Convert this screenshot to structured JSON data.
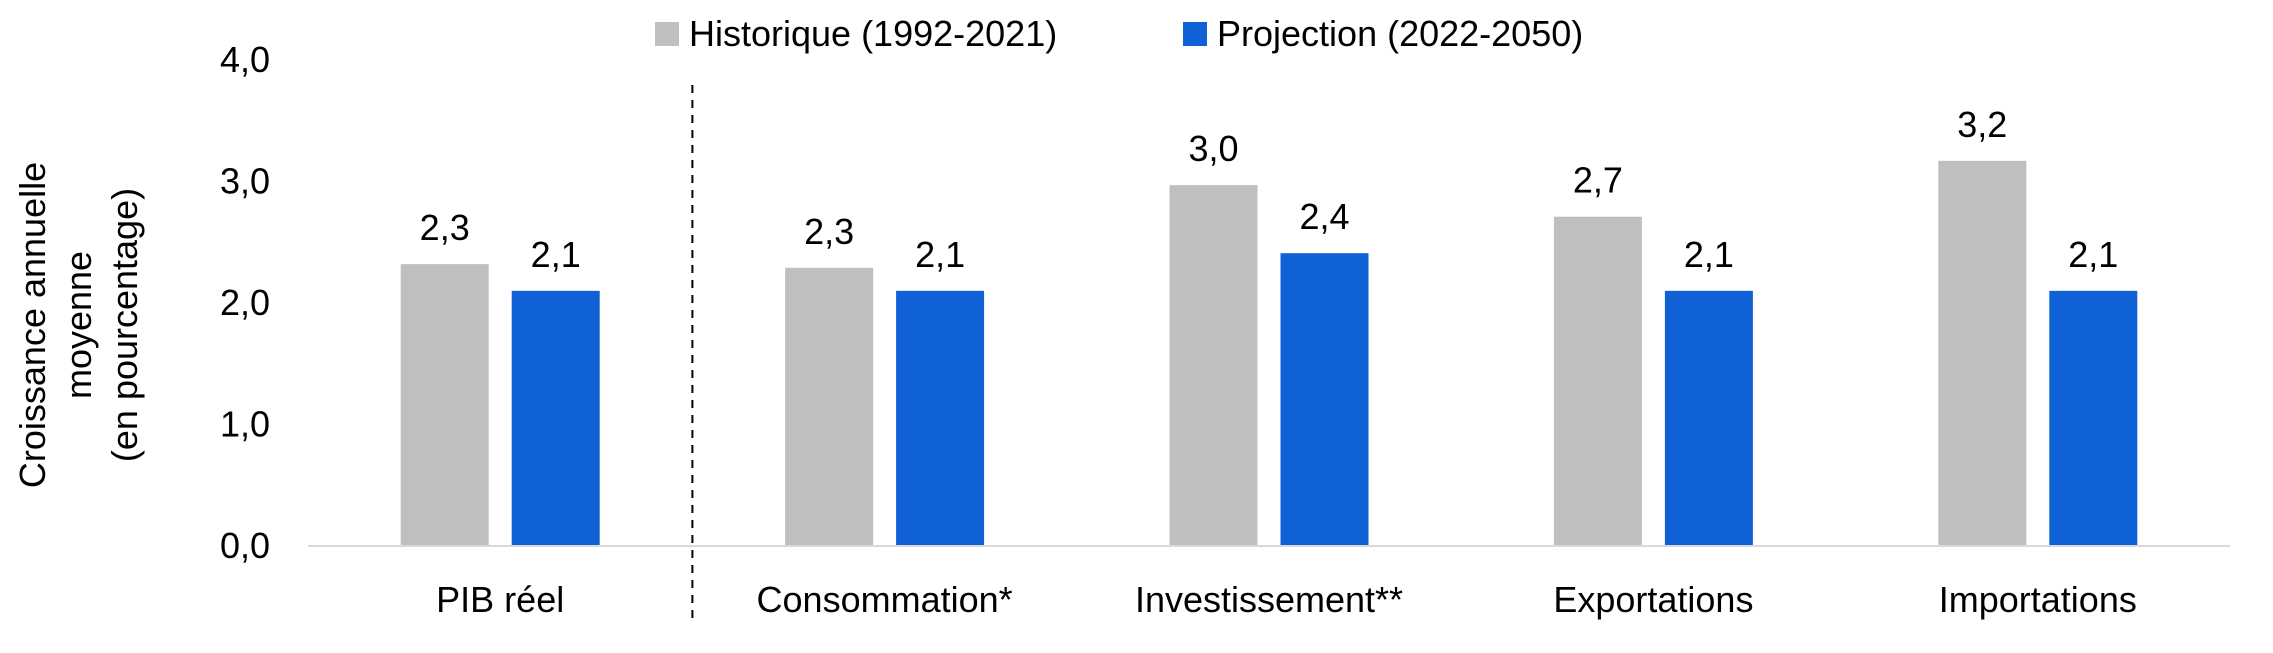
{
  "chart_data": {
    "type": "bar",
    "categories": [
      "PIB réel",
      "Consommation*",
      "Investissement**",
      "Exportations",
      "Importations"
    ],
    "series": [
      {
        "name": "Historique (1992-2021)",
        "color": "#bfbfbf",
        "values": [
          2.32,
          2.29,
          2.97,
          2.71,
          3.17
        ],
        "labels": [
          "2,3",
          "2,3",
          "3,0",
          "2,7",
          "3,2"
        ]
      },
      {
        "name": "Projection (2022-2050)",
        "color": "#1060d6",
        "values": [
          2.1,
          2.1,
          2.41,
          2.1,
          2.1
        ],
        "labels": [
          "2,1",
          "2,1",
          "2,4",
          "2,1",
          "2,1"
        ]
      }
    ],
    "ylabel_lines": [
      "Croissance annuelle",
      "moyenne",
      "(en pourcentage)"
    ],
    "ylim": [
      0,
      4
    ],
    "yticks": [
      0,
      1,
      2,
      3,
      4
    ],
    "ytick_labels": [
      "0,0",
      "1,0",
      "2,0",
      "3,0",
      "4,0"
    ],
    "legend": {
      "position": "top"
    },
    "divider_after_category": 0
  }
}
